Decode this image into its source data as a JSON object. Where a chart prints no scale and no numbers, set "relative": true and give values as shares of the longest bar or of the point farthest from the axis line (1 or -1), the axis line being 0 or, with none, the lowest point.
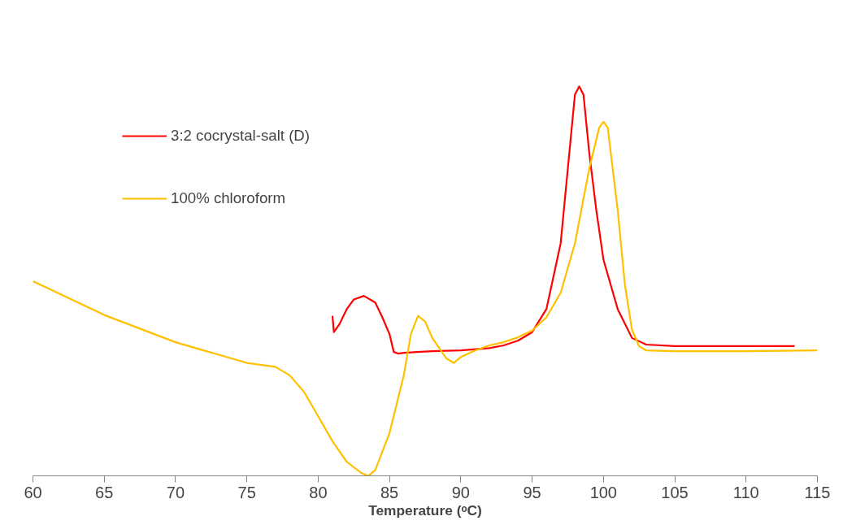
{
  "chart_data": {
    "type": "line",
    "relative": true,
    "xlabel": "Temperature (ᵒC)",
    "xlim": [
      60,
      115
    ],
    "xticks": [
      60,
      65,
      70,
      75,
      80,
      85,
      90,
      95,
      100,
      105,
      110,
      115
    ],
    "grid": false,
    "legend": "top left",
    "marker": "none",
    "line_style": "solid",
    "series": [
      {
        "name": "3:2 cocrystal-salt (D)",
        "color": "#ff0000",
        "x": [
          81,
          81.1,
          81.5,
          82,
          82.5,
          83.2,
          84,
          84.5,
          85,
          85.3,
          85.6,
          86,
          88,
          90,
          92,
          93,
          94,
          95,
          96,
          97,
          97.5,
          98,
          98.3,
          98.6,
          99,
          99.5,
          100,
          101,
          102,
          103,
          105,
          110,
          113.4
        ],
        "values": [
          0.411,
          0.369,
          0.39,
          0.428,
          0.453,
          0.462,
          0.445,
          0.407,
          0.364,
          0.318,
          0.314,
          0.316,
          0.32,
          0.322,
          0.328,
          0.335,
          0.347,
          0.369,
          0.428,
          0.597,
          0.788,
          0.979,
          1.0,
          0.979,
          0.831,
          0.682,
          0.555,
          0.428,
          0.354,
          0.337,
          0.333,
          0.333,
          0.333
        ]
      },
      {
        "name": "100% chloroform",
        "color": "#ffc000",
        "x": [
          60,
          65,
          70,
          75,
          77,
          78,
          79,
          80,
          81,
          82,
          83,
          83.5,
          84,
          85,
          86,
          86.5,
          87,
          87.5,
          88,
          89,
          89.5,
          90,
          91,
          92,
          93,
          94,
          95,
          96,
          97,
          98,
          99,
          99.7,
          100,
          100.3,
          101,
          101.5,
          102,
          102.5,
          103,
          105,
          110,
          115
        ],
        "values": [
          0.5,
          0.413,
          0.343,
          0.29,
          0.28,
          0.258,
          0.216,
          0.153,
          0.089,
          0.036,
          0.008,
          0,
          0.015,
          0.11,
          0.258,
          0.364,
          0.411,
          0.396,
          0.354,
          0.301,
          0.29,
          0.305,
          0.322,
          0.335,
          0.343,
          0.356,
          0.373,
          0.407,
          0.47,
          0.597,
          0.788,
          0.894,
          0.909,
          0.894,
          0.682,
          0.492,
          0.375,
          0.333,
          0.322,
          0.32,
          0.32,
          0.322
        ]
      }
    ]
  }
}
